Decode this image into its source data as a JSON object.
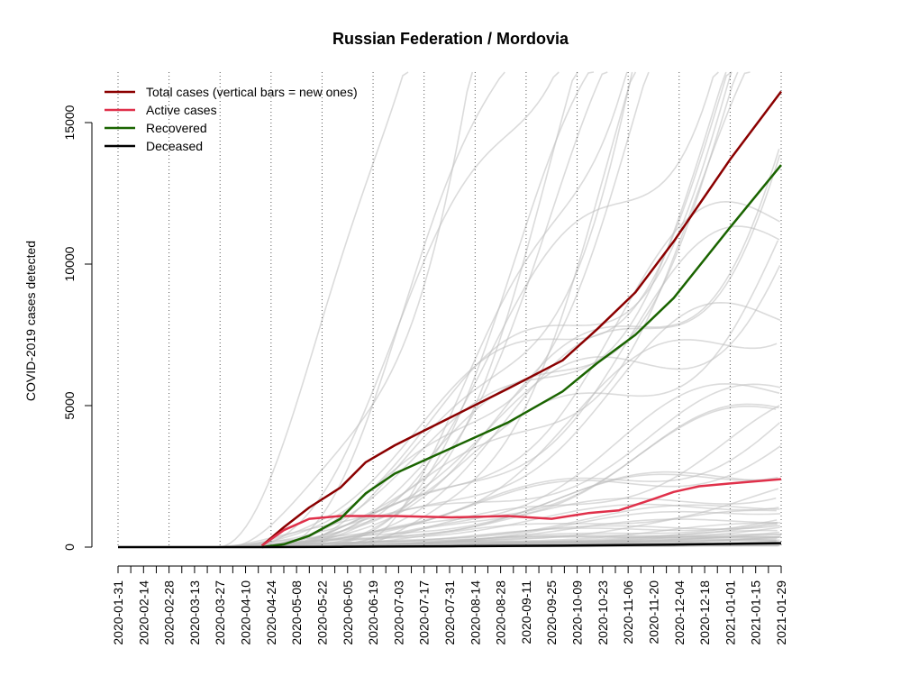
{
  "chart_data": {
    "type": "line",
    "title": "Russian Federation / Mordovia",
    "xlabel": "",
    "ylabel": "COVID-2019 cases detected",
    "ylim": [
      0,
      16000
    ],
    "xlim": [
      "2020-01-31",
      "2021-01-29"
    ],
    "yticks": [
      0,
      5000,
      10000,
      15000
    ],
    "ytick_labels": [
      "0",
      "5000",
      "10000",
      "15000"
    ],
    "xtick_labels": [
      "2020-01-31",
      "2020-02-14",
      "2020-02-28",
      "2020-03-13",
      "2020-03-27",
      "2020-04-10",
      "2020-04-24",
      "2020-05-08",
      "2020-05-22",
      "2020-06-05",
      "2020-06-19",
      "2020-07-03",
      "2020-07-17",
      "2020-07-31",
      "2020-08-14",
      "2020-08-28",
      "2020-09-11",
      "2020-09-25",
      "2020-10-09",
      "2020-10-23",
      "2020-11-06",
      "2020-11-20",
      "2020-12-04",
      "2020-12-18",
      "2021-01-01",
      "2021-01-15",
      "2021-01-29"
    ],
    "legend_position": "top-left",
    "grid": "dotted vertical lines every 4 weeks",
    "series": [
      {
        "name": "Total cases (vertical bars = new ones)",
        "color": "#8b0000",
        "x": [
          "2020-04-19",
          "2020-05-01",
          "2020-05-15",
          "2020-06-01",
          "2020-06-15",
          "2020-07-01",
          "2020-08-01",
          "2020-09-01",
          "2020-10-01",
          "2020-10-20",
          "2020-11-10",
          "2020-12-01",
          "2021-01-01",
          "2021-01-29"
        ],
        "values": [
          50,
          700,
          1400,
          2100,
          3000,
          3600,
          4600,
          5600,
          6600,
          7700,
          9000,
          10800,
          13700,
          16100
        ]
      },
      {
        "name": "Active cases",
        "color": "#e0304a",
        "x": [
          "2020-04-19",
          "2020-05-01",
          "2020-05-15",
          "2020-06-01",
          "2020-06-15",
          "2020-07-01",
          "2020-08-01",
          "2020-09-01",
          "2020-09-25",
          "2020-10-15",
          "2020-11-01",
          "2020-11-20",
          "2020-12-01",
          "2020-12-15",
          "2021-01-01",
          "2021-01-29"
        ],
        "values": [
          50,
          600,
          1000,
          1100,
          1100,
          1100,
          1050,
          1100,
          1000,
          1200,
          1300,
          1700,
          1950,
          2150,
          2250,
          2400
        ]
      },
      {
        "name": "Recovered",
        "color": "#1a6400",
        "x": [
          "2020-04-19",
          "2020-05-01",
          "2020-05-15",
          "2020-06-01",
          "2020-06-15",
          "2020-07-01",
          "2020-08-01",
          "2020-09-01",
          "2020-10-01",
          "2020-10-20",
          "2020-11-10",
          "2020-12-01",
          "2021-01-01",
          "2021-01-29"
        ],
        "values": [
          0,
          100,
          400,
          1000,
          1900,
          2600,
          3500,
          4400,
          5500,
          6500,
          7500,
          8800,
          11300,
          13500
        ]
      },
      {
        "name": "Deceased",
        "color": "#000000",
        "x": [
          "2020-01-31",
          "2020-04-19",
          "2020-06-01",
          "2020-08-01",
          "2020-10-01",
          "2020-12-01",
          "2021-01-29"
        ],
        "values": [
          0,
          0,
          10,
          30,
          50,
          90,
          140
        ]
      }
    ],
    "background_series_color": "#bdbdbd"
  }
}
